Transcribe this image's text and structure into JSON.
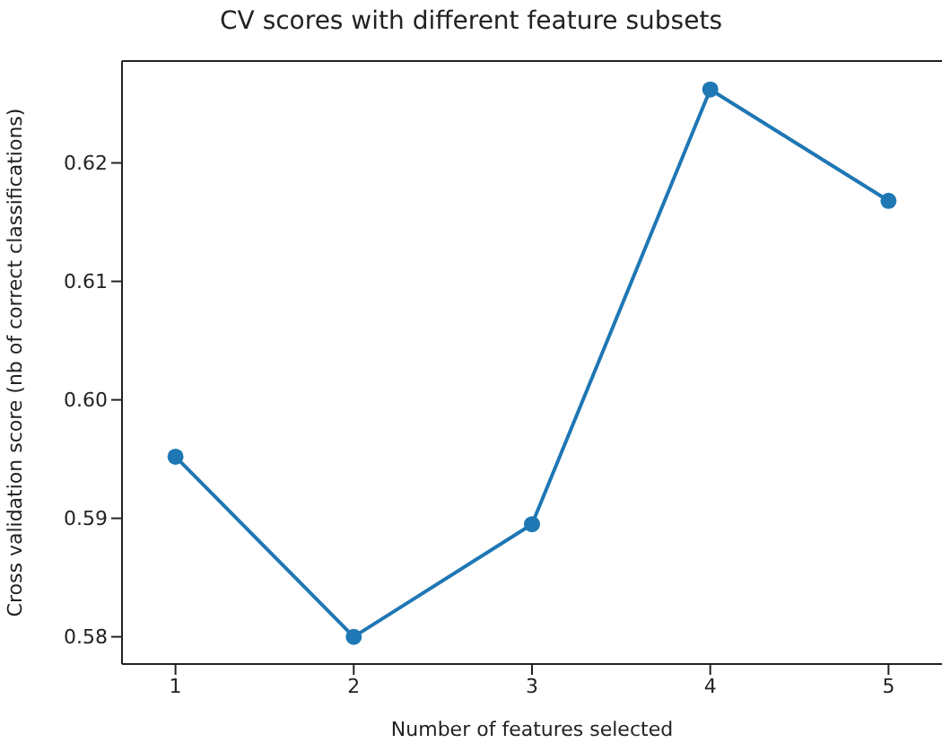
{
  "chart_data": {
    "type": "line",
    "title": "CV scores with different feature subsets",
    "xlabel": "Number of features selected",
    "ylabel": "Cross validation score (nb of correct classifications)",
    "x": [
      1,
      2,
      3,
      4,
      5
    ],
    "series": [
      {
        "color": "#1f77b4",
        "values": [
          0.5952,
          0.58,
          0.5895,
          0.6262,
          0.6168
        ]
      }
    ],
    "xlim": [
      0.7,
      5.3
    ],
    "xticks": [
      1,
      2,
      3,
      4,
      5
    ],
    "ylim": [
      0.5777,
      0.6286
    ],
    "yticks": [
      {
        "value": 0.58,
        "label": "0.58"
      },
      {
        "value": 0.59,
        "label": "0.59"
      },
      {
        "value": 0.6,
        "label": "0.60"
      },
      {
        "value": 0.61,
        "label": "0.61"
      },
      {
        "value": 0.62,
        "label": "0.62"
      }
    ],
    "grid": false,
    "legend": false,
    "marker": "circle",
    "line_style": "solid"
  }
}
